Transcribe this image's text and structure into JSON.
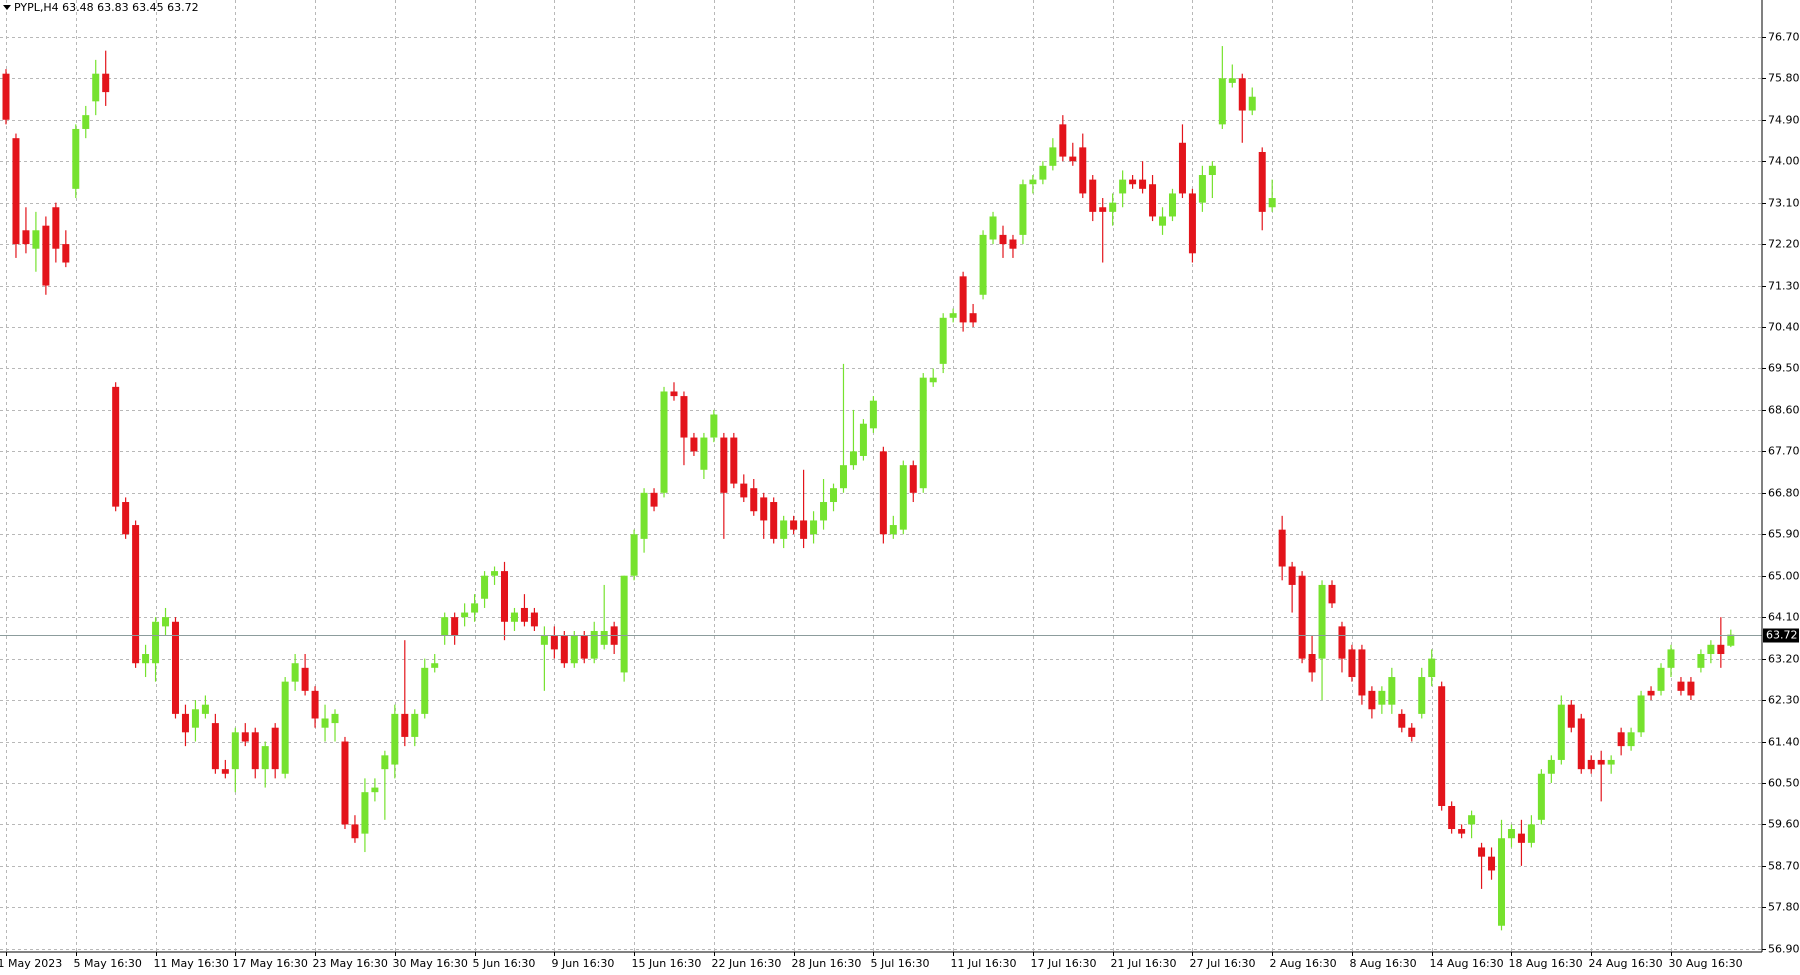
{
  "chart_data": {
    "type": "candlestick",
    "title": "PYPL,H4 63.48 63.83 63.45 63.72",
    "up_color": "#76e22e",
    "down_color": "#e3141b",
    "grid": true,
    "ylim": [
      56.83,
      77.5
    ],
    "yticks": [
      {
        "value": 56.9,
        "label": "56.90"
      },
      {
        "value": 57.8,
        "label": "57.80"
      },
      {
        "value": 58.7,
        "label": "58.70"
      },
      {
        "value": 59.6,
        "label": "59.60"
      },
      {
        "value": 60.5,
        "label": "60.50"
      },
      {
        "value": 61.4,
        "label": "61.40"
      },
      {
        "value": 62.3,
        "label": "62.30"
      },
      {
        "value": 63.2,
        "label": "63.20"
      },
      {
        "value": 64.1,
        "label": "64.10"
      },
      {
        "value": 65.0,
        "label": "65.00"
      },
      {
        "value": 65.9,
        "label": "65.90"
      },
      {
        "value": 66.8,
        "label": "66.80"
      },
      {
        "value": 67.7,
        "label": "67.70"
      },
      {
        "value": 68.6,
        "label": "68.60"
      },
      {
        "value": 69.5,
        "label": "69.50"
      },
      {
        "value": 70.4,
        "label": "70.40"
      },
      {
        "value": 71.3,
        "label": "71.30"
      },
      {
        "value": 72.2,
        "label": "72.20"
      },
      {
        "value": 73.1,
        "label": "73.10"
      },
      {
        "value": 74.0,
        "label": "74.00"
      },
      {
        "value": 74.9,
        "label": "74.90"
      },
      {
        "value": 75.8,
        "label": "75.80"
      },
      {
        "value": 76.7,
        "label": "76.70"
      }
    ],
    "last_price": {
      "value": 63.72,
      "label": "63.72"
    },
    "categories": [
      "1 May 2023",
      null,
      null,
      null,
      null,
      null,
      null,
      "5 May 16:30",
      null,
      null,
      null,
      null,
      null,
      null,
      null,
      "11 May 16:30",
      null,
      null,
      null,
      null,
      null,
      null,
      null,
      "17 May 16:30",
      null,
      null,
      null,
      null,
      null,
      null,
      null,
      "23 May 16:30",
      null,
      null,
      null,
      null,
      null,
      null,
      null,
      "30 May 16:30",
      null,
      null,
      null,
      null,
      null,
      null,
      null,
      "5 Jun 16:30",
      null,
      null,
      null,
      null,
      null,
      null,
      null,
      "9 Jun 16:30",
      null,
      null,
      null,
      null,
      null,
      null,
      null,
      "15 Jun 16:30",
      null,
      null,
      null,
      null,
      null,
      null,
      null,
      "22 Jun 16:30",
      null,
      null,
      null,
      null,
      null,
      null,
      null,
      "28 Jun 16:30",
      null,
      null,
      null,
      null,
      null,
      null,
      null,
      "5 Jul 16:30",
      null,
      null,
      null,
      null,
      null,
      null,
      null,
      "11 Jul 16:30",
      null,
      null,
      null,
      null,
      null,
      null,
      null,
      "17 Jul 16:30",
      null,
      null,
      null,
      null,
      null,
      null,
      null,
      "21 Jul 16:30",
      null,
      null,
      null,
      null,
      null,
      null,
      null,
      "27 Jul 16:30",
      null,
      null,
      null,
      null,
      null,
      null,
      null,
      "2 Aug 16:30",
      null,
      null,
      null,
      null,
      null,
      null,
      null,
      "8 Aug 16:30",
      null,
      null,
      null,
      null,
      null,
      null,
      null,
      "14 Aug 16:30",
      null,
      null,
      null,
      null,
      null,
      null,
      null,
      "18 Aug 16:30",
      null,
      null,
      null,
      null,
      null,
      null,
      null,
      "24 Aug 16:30",
      null,
      null,
      null,
      null,
      null,
      null,
      null,
      "30 Aug 16:30",
      null,
      null,
      null,
      null,
      null,
      null
    ],
    "ohlc": [
      [
        75.9,
        76.0,
        74.8,
        74.9
      ],
      [
        74.5,
        74.6,
        71.9,
        72.2
      ],
      [
        72.5,
        73.0,
        72.0,
        72.2
      ],
      [
        72.1,
        72.9,
        71.6,
        72.5
      ],
      [
        72.6,
        72.8,
        71.1,
        71.3
      ],
      [
        73.0,
        73.1,
        71.8,
        72.1
      ],
      [
        72.2,
        72.5,
        71.7,
        71.8
      ],
      [
        73.4,
        74.8,
        73.2,
        74.7
      ],
      [
        74.7,
        75.2,
        74.5,
        75.0
      ],
      [
        75.3,
        76.2,
        75.0,
        75.9
      ],
      [
        75.9,
        76.4,
        75.2,
        75.5
      ],
      [
        69.1,
        69.2,
        66.4,
        66.5
      ],
      [
        66.6,
        66.7,
        65.8,
        65.9
      ],
      [
        66.1,
        66.2,
        63.0,
        63.1
      ],
      [
        63.1,
        63.5,
        62.8,
        63.3
      ],
      [
        63.1,
        64.1,
        62.7,
        64.0
      ],
      [
        63.9,
        64.3,
        63.7,
        64.1
      ],
      [
        64.0,
        64.1,
        61.9,
        62.0
      ],
      [
        62.0,
        62.2,
        61.3,
        61.6
      ],
      [
        61.7,
        62.3,
        61.4,
        62.1
      ],
      [
        62.0,
        62.4,
        61.9,
        62.2
      ],
      [
        61.8,
        62.0,
        60.7,
        60.8
      ],
      [
        60.8,
        61.0,
        60.6,
        60.7
      ],
      [
        60.8,
        61.7,
        60.3,
        61.6
      ],
      [
        61.6,
        61.8,
        61.3,
        61.4
      ],
      [
        61.6,
        61.7,
        60.6,
        60.8
      ],
      [
        60.8,
        61.4,
        60.4,
        61.3
      ],
      [
        61.7,
        61.8,
        60.6,
        60.8
      ],
      [
        60.7,
        62.8,
        60.6,
        62.7
      ],
      [
        62.7,
        63.3,
        62.5,
        63.1
      ],
      [
        63.0,
        63.3,
        62.4,
        62.5
      ],
      [
        62.5,
        62.6,
        61.7,
        61.9
      ],
      [
        61.7,
        62.2,
        61.4,
        61.9
      ],
      [
        61.8,
        62.1,
        61.4,
        62.0
      ],
      [
        61.4,
        61.5,
        59.5,
        59.6
      ],
      [
        59.6,
        59.8,
        59.2,
        59.3
      ],
      [
        59.4,
        60.6,
        59.0,
        60.3
      ],
      [
        60.3,
        60.6,
        60.1,
        60.4
      ],
      [
        60.8,
        61.2,
        59.7,
        61.1
      ],
      [
        60.9,
        62.2,
        60.6,
        62.0
      ],
      [
        62.0,
        63.6,
        61.3,
        61.5
      ],
      [
        61.5,
        62.1,
        61.3,
        62.0
      ],
      [
        62.0,
        63.2,
        61.9,
        63.0
      ],
      [
        63.0,
        63.3,
        62.9,
        63.1
      ],
      [
        63.7,
        64.2,
        63.5,
        64.1
      ],
      [
        64.1,
        64.2,
        63.5,
        63.7
      ],
      [
        64.1,
        64.4,
        63.9,
        64.2
      ],
      [
        64.2,
        64.6,
        64.0,
        64.4
      ],
      [
        64.5,
        65.1,
        64.3,
        65.0
      ],
      [
        65.0,
        65.2,
        64.8,
        65.1
      ],
      [
        65.1,
        65.3,
        63.6,
        64.0
      ],
      [
        64.0,
        64.3,
        63.8,
        64.2
      ],
      [
        64.3,
        64.6,
        63.9,
        64.0
      ],
      [
        64.2,
        64.3,
        63.8,
        63.9
      ],
      [
        63.5,
        63.9,
        62.5,
        63.7
      ],
      [
        63.7,
        63.9,
        63.2,
        63.4
      ],
      [
        63.7,
        63.8,
        63.0,
        63.1
      ],
      [
        63.1,
        63.8,
        63.0,
        63.7
      ],
      [
        63.7,
        63.8,
        63.1,
        63.2
      ],
      [
        63.2,
        64.0,
        63.1,
        63.8
      ],
      [
        63.5,
        64.8,
        63.4,
        63.8
      ],
      [
        63.9,
        64.0,
        63.3,
        63.5
      ],
      [
        62.9,
        65.0,
        62.7,
        65.0
      ],
      [
        65.0,
        66.0,
        64.9,
        65.9
      ],
      [
        65.8,
        66.9,
        65.5,
        66.8
      ],
      [
        66.8,
        66.9,
        66.4,
        66.5
      ],
      [
        66.8,
        69.1,
        66.7,
        69.0
      ],
      [
        69.0,
        69.2,
        68.8,
        68.9
      ],
      [
        68.9,
        69.0,
        67.4,
        68.0
      ],
      [
        68.0,
        68.1,
        67.6,
        67.7
      ],
      [
        67.3,
        68.1,
        67.1,
        68.0
      ],
      [
        68.0,
        68.6,
        67.9,
        68.5
      ],
      [
        68.0,
        68.1,
        65.8,
        66.8
      ],
      [
        68.0,
        68.1,
        66.9,
        67.0
      ],
      [
        67.0,
        67.2,
        66.6,
        66.7
      ],
      [
        66.9,
        67.1,
        66.3,
        66.4
      ],
      [
        66.7,
        66.8,
        65.8,
        66.2
      ],
      [
        66.6,
        66.7,
        65.7,
        65.8
      ],
      [
        65.8,
        66.3,
        65.6,
        66.2
      ],
      [
        66.2,
        66.3,
        65.9,
        66.0
      ],
      [
        66.2,
        67.3,
        65.6,
        65.8
      ],
      [
        65.9,
        66.4,
        65.7,
        66.2
      ],
      [
        66.2,
        67.1,
        66.0,
        66.6
      ],
      [
        66.6,
        67.0,
        66.4,
        66.9
      ],
      [
        66.9,
        69.6,
        66.8,
        67.4
      ],
      [
        67.4,
        68.6,
        67.3,
        67.7
      ],
      [
        67.6,
        68.4,
        67.5,
        68.3
      ],
      [
        68.2,
        68.9,
        68.1,
        68.8
      ],
      [
        67.7,
        67.8,
        65.7,
        65.9
      ],
      [
        65.9,
        66.3,
        65.8,
        66.1
      ],
      [
        66.0,
        67.5,
        65.9,
        67.4
      ],
      [
        67.4,
        67.5,
        66.6,
        66.8
      ],
      [
        66.9,
        69.4,
        66.8,
        69.3
      ],
      [
        69.2,
        69.5,
        69.1,
        69.3
      ],
      [
        69.6,
        70.7,
        69.4,
        70.6
      ],
      [
        70.6,
        70.8,
        70.5,
        70.7
      ],
      [
        71.5,
        71.6,
        70.3,
        70.5
      ],
      [
        70.7,
        70.9,
        70.4,
        70.5
      ],
      [
        71.1,
        72.5,
        71.0,
        72.4
      ],
      [
        72.3,
        72.9,
        72.2,
        72.8
      ],
      [
        72.4,
        72.6,
        71.9,
        72.2
      ],
      [
        72.3,
        72.4,
        71.9,
        72.1
      ],
      [
        72.4,
        73.6,
        72.2,
        73.5
      ],
      [
        73.5,
        73.7,
        73.3,
        73.6
      ],
      [
        73.6,
        74.0,
        73.5,
        73.9
      ],
      [
        73.9,
        74.5,
        73.8,
        74.3
      ],
      [
        74.8,
        75.0,
        74.0,
        74.1
      ],
      [
        74.1,
        74.4,
        73.9,
        74.0
      ],
      [
        74.3,
        74.6,
        73.2,
        73.3
      ],
      [
        73.6,
        73.7,
        72.7,
        72.9
      ],
      [
        73.0,
        73.2,
        71.8,
        72.9
      ],
      [
        72.9,
        73.3,
        72.6,
        73.1
      ],
      [
        73.3,
        73.8,
        73.0,
        73.6
      ],
      [
        73.6,
        73.7,
        73.4,
        73.5
      ],
      [
        73.6,
        74.0,
        73.3,
        73.4
      ],
      [
        73.5,
        73.7,
        72.7,
        72.8
      ],
      [
        72.6,
        73.0,
        72.4,
        72.8
      ],
      [
        72.8,
        73.4,
        72.7,
        73.3
      ],
      [
        74.4,
        74.8,
        73.2,
        73.3
      ],
      [
        73.3,
        73.4,
        71.8,
        72.0
      ],
      [
        73.1,
        73.9,
        72.9,
        73.7
      ],
      [
        73.7,
        74.0,
        73.2,
        73.9
      ],
      [
        74.8,
        76.5,
        74.7,
        75.8
      ],
      [
        75.7,
        76.1,
        75.6,
        75.8
      ],
      [
        75.8,
        75.9,
        74.4,
        75.1
      ],
      [
        75.1,
        75.6,
        75.0,
        75.4
      ],
      [
        74.2,
        74.3,
        72.5,
        72.9
      ],
      [
        73.0,
        73.6,
        72.9,
        73.2
      ],
      [
        66.0,
        66.3,
        64.9,
        65.2
      ],
      [
        65.2,
        65.3,
        64.2,
        64.8
      ],
      [
        65.0,
        65.1,
        63.1,
        63.2
      ],
      [
        63.3,
        63.7,
        62.7,
        62.9
      ],
      [
        63.2,
        64.9,
        62.3,
        64.8
      ],
      [
        64.8,
        64.9,
        64.3,
        64.4
      ],
      [
        63.9,
        64.0,
        62.9,
        63.2
      ],
      [
        63.4,
        63.5,
        62.7,
        62.8
      ],
      [
        63.4,
        63.5,
        62.2,
        62.4
      ],
      [
        62.5,
        62.6,
        61.9,
        62.1
      ],
      [
        62.2,
        62.6,
        62.0,
        62.5
      ],
      [
        62.2,
        63.0,
        62.0,
        62.8
      ],
      [
        62.0,
        62.1,
        61.6,
        61.7
      ],
      [
        61.7,
        61.8,
        61.4,
        61.5
      ],
      [
        62.0,
        63.0,
        61.9,
        62.8
      ],
      [
        62.8,
        63.4,
        62.6,
        63.2
      ],
      [
        62.6,
        62.7,
        59.9,
        60.0
      ],
      [
        60.0,
        60.1,
        59.4,
        59.5
      ],
      [
        59.5,
        59.6,
        59.3,
        59.4
      ],
      [
        59.6,
        59.9,
        59.3,
        59.8
      ],
      [
        59.1,
        59.2,
        58.2,
        58.9
      ],
      [
        58.9,
        59.1,
        58.4,
        58.6
      ],
      [
        57.4,
        59.7,
        57.3,
        59.3
      ],
      [
        59.3,
        59.6,
        59.1,
        59.5
      ],
      [
        59.4,
        59.7,
        58.7,
        59.2
      ],
      [
        59.2,
        59.8,
        59.1,
        59.6
      ],
      [
        59.7,
        60.8,
        59.6,
        60.7
      ],
      [
        60.7,
        61.1,
        60.5,
        61.0
      ],
      [
        61.0,
        62.4,
        60.9,
        62.2
      ],
      [
        62.2,
        62.3,
        61.6,
        61.7
      ],
      [
        61.9,
        62.0,
        60.7,
        60.8
      ],
      [
        61.0,
        61.1,
        60.7,
        60.8
      ],
      [
        61.0,
        61.2,
        60.1,
        60.9
      ],
      [
        60.9,
        61.1,
        60.7,
        61.0
      ],
      [
        61.6,
        61.7,
        61.1,
        61.3
      ],
      [
        61.3,
        61.7,
        61.2,
        61.6
      ],
      [
        61.6,
        62.5,
        61.5,
        62.4
      ],
      [
        62.5,
        62.6,
        62.3,
        62.4
      ],
      [
        62.5,
        63.1,
        62.4,
        63.0
      ],
      [
        63.0,
        63.5,
        62.8,
        63.4
      ],
      [
        62.7,
        62.8,
        62.4,
        62.5
      ],
      [
        62.7,
        62.8,
        62.3,
        62.4
      ],
      [
        63.0,
        63.4,
        62.9,
        63.3
      ],
      [
        63.3,
        63.6,
        63.1,
        63.5
      ],
      [
        63.5,
        64.1,
        63.0,
        63.3
      ],
      [
        63.48,
        63.83,
        63.45,
        63.72
      ]
    ]
  }
}
